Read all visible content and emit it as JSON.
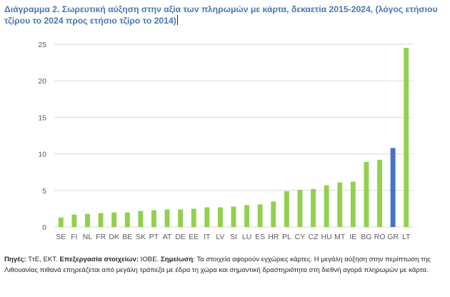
{
  "title": "Διάγραμμα 2. Σωρευτική αύξηση στην αξία των πληρωμών με κάρτα, δεκαετία 2015-2024, (λόγος ετήσιου τζίρου το 2024 προς ετήσιο τζίρο το 2014)",
  "note": {
    "sources_label": "Πηγές:",
    "sources_text": " ΤτΕ, ΕΚΤ. ",
    "processing_label": "Επεξεργασία στοιχείων:",
    "processing_text": " ΙΟΒΕ. ",
    "remark_label": "Σημείωση",
    "remark_text": ": Τα στοιχεία αφορούν εγχώριες κάρτες. Η μεγάλη αύξηση στην περίπτωση της Λιθουανίας πιθανά επηρεάζεται από μεγάλη τράπεζα με έδρα τη χώρα και σημαντική δραστηριότητα στη διεθνή αγορά πληρωμών με κάρτα."
  },
  "colors": {
    "bar": "#92d050",
    "highlight": "#4472c4",
    "grid": "#d9d9d9",
    "axis_text": "#595959"
  },
  "chart_data": {
    "type": "bar",
    "categories": [
      "SE",
      "FI",
      "NL",
      "FR",
      "DK",
      "BE",
      "SK",
      "PT",
      "AT",
      "DE",
      "EE",
      "IT",
      "LV",
      "SI",
      "LU",
      "ES",
      "HR",
      "PL",
      "CY",
      "CZ",
      "HU",
      "MT",
      "IE",
      "BG",
      "RO",
      "GR",
      "LT"
    ],
    "values": [
      1.3,
      1.7,
      1.8,
      1.9,
      2.0,
      2.0,
      2.2,
      2.3,
      2.4,
      2.4,
      2.5,
      2.7,
      2.7,
      2.8,
      3.0,
      3.1,
      3.5,
      4.9,
      5.1,
      5.2,
      5.7,
      6.1,
      6.2,
      8.9,
      9.2,
      10.8,
      24.5
    ],
    "highlight_category": "GR",
    "yticks": [
      0,
      5,
      10,
      15,
      20,
      25
    ],
    "ylim": [
      0,
      25
    ],
    "grid": true,
    "legend": "none"
  }
}
